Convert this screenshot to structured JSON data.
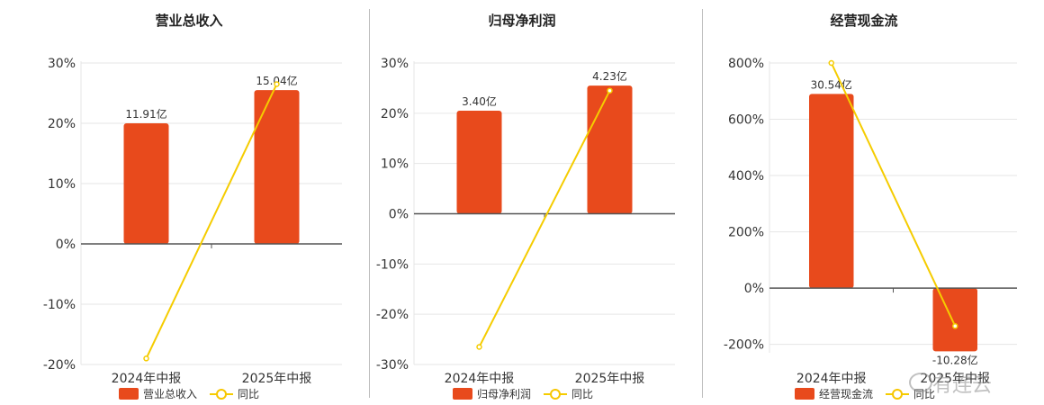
{
  "colors": {
    "bar": "#e84a1c",
    "line": "#f5cc00",
    "axis": "#555555",
    "grid": "#e6e6e6"
  },
  "chart_data": [
    {
      "type": "bar",
      "title": "营业总收入",
      "categories": [
        "2024年中报",
        "2025年中报"
      ],
      "bar_series": {
        "name": "营业总收入",
        "values": [
          20,
          25.5
        ],
        "labels": [
          "11.91亿",
          "15.04亿"
        ]
      },
      "line_series": {
        "name": "同比",
        "values": [
          -19,
          26.5
        ]
      },
      "ylim": [
        -20,
        30
      ],
      "yticks": [
        -20,
        -10,
        0,
        10,
        20,
        30
      ],
      "tick_suffix": "%",
      "grid": true,
      "legend": "bottom"
    },
    {
      "type": "bar",
      "title": "归母净利润",
      "categories": [
        "2024年中报",
        "2025年中报"
      ],
      "bar_series": {
        "name": "归母净利润",
        "values": [
          20.5,
          25.5
        ],
        "labels": [
          "3.40亿",
          "4.23亿"
        ]
      },
      "line_series": {
        "name": "同比",
        "values": [
          -26.5,
          24.5
        ]
      },
      "ylim": [
        -30,
        30
      ],
      "yticks": [
        -30,
        -20,
        -10,
        0,
        10,
        20,
        30
      ],
      "tick_suffix": "%",
      "grid": true,
      "legend": "bottom"
    },
    {
      "type": "bar",
      "title": "经营现金流",
      "categories": [
        "2024年中报",
        "2025年中报"
      ],
      "bar_series": {
        "name": "经营现金流",
        "values": [
          690,
          -225
        ],
        "labels": [
          "30.54亿",
          "-10.28亿"
        ]
      },
      "line_series": {
        "name": "同比",
        "values": [
          800,
          -135
        ]
      },
      "ylim": [
        -230,
        800
      ],
      "yticks": [
        -200,
        0,
        200,
        400,
        600,
        800
      ],
      "tick_suffix": "%",
      "grid": true,
      "legend": "bottom"
    }
  ],
  "watermark": "有连云"
}
